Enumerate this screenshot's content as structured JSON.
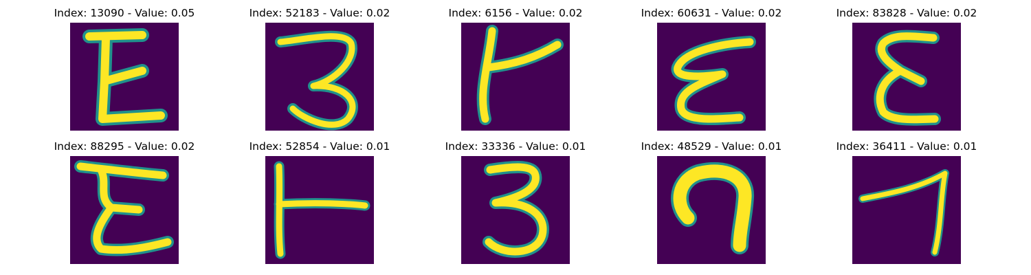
{
  "colors": {
    "background": "#440154",
    "stroke": "#fde725",
    "edge": "#21918c"
  },
  "grid": [
    {
      "index": "13090",
      "value": "0.05",
      "title": "Index: 13090 - Value: 0.05",
      "glyph": "E"
    },
    {
      "index": "52183",
      "value": "0.02",
      "title": "Index: 52183 - Value: 0.02",
      "glyph": "3"
    },
    {
      "index": "6156",
      "value": "0.02",
      "title": "Index: 6156 - Value: 0.02",
      "glyph": "K"
    },
    {
      "index": "60631",
      "value": "0.02",
      "title": "Index: 60631 - Value: 0.02",
      "glyph": "E"
    },
    {
      "index": "83828",
      "value": "0.02",
      "title": "Index: 83828 - Value: 0.02",
      "glyph": "E"
    },
    {
      "index": "88295",
      "value": "0.02",
      "title": "Index: 88295 - Value: 0.02",
      "glyph": "E"
    },
    {
      "index": "52854",
      "value": "0.01",
      "title": "Index: 52854 - Value: 0.01",
      "glyph": "T"
    },
    {
      "index": "33336",
      "value": "0.01",
      "title": "Index: 33336 - Value: 0.01",
      "glyph": "3"
    },
    {
      "index": "48529",
      "value": "0.01",
      "title": "Index: 48529 - Value: 0.01",
      "glyph": "n"
    },
    {
      "index": "36411",
      "value": "0.01",
      "title": "Index: 36411 - Value: 0.01",
      "glyph": "7"
    }
  ]
}
